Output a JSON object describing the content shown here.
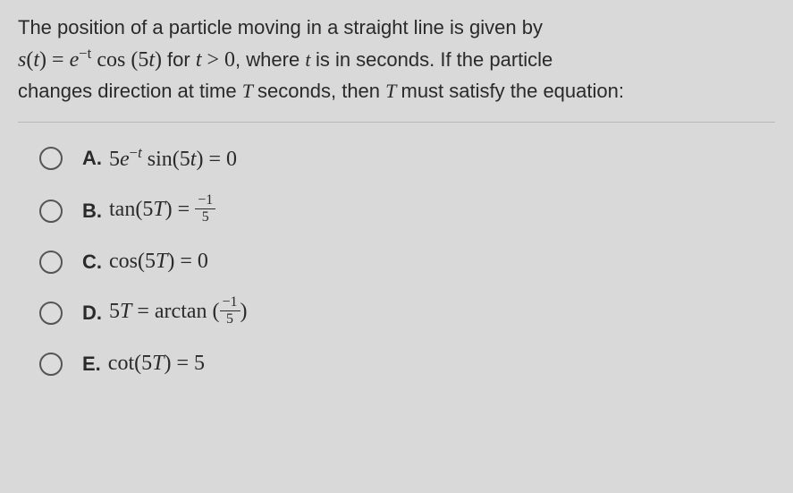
{
  "question": {
    "line1_prefix": "The position of a particle moving in a straight line is given by",
    "expr_s": "s",
    "expr_paren_open": "(",
    "expr_t": "t",
    "expr_paren_close": ")",
    "expr_eq": " = ",
    "expr_e": "e",
    "expr_exp": "−t",
    "expr_cos": " cos ",
    "expr_5t_open": "(5",
    "expr_5t_t": "t",
    "expr_5t_close": ")",
    "for_text": " for ",
    "cond_t": "t",
    "cond_gt": " > 0",
    "line2_mid": ", where ",
    "line2_tvar": "t ",
    "line2_rest": "is in seconds. If the particle",
    "line3_prefix": "changes direction at time ",
    "line3_T": "T ",
    "line3_mid": "seconds, then ",
    "line3_T2": "T ",
    "line3_rest": "must satisfy the equation:"
  },
  "answers": [
    {
      "label": "A.",
      "html": "5<span class=\"math-var\">e</span><sup>−<span class=\"math-var\">t</span></sup> sin(5<span class=\"math-var\">t</span>) = 0"
    },
    {
      "label": "B.",
      "html": "tan(5<span class=\"math-var\">T</span>) = <span class=\"frac\"><span class=\"num\">−1</span><span class=\"den\">5</span></span>"
    },
    {
      "label": "C.",
      "html": "cos(5<span class=\"math-var\">T</span>) = 0"
    },
    {
      "label": "D.",
      "html": "5<span class=\"math-var\">T</span> = arctan (<span class=\"frac\"><span class=\"num\">−1</span><span class=\"den\">5</span></span>)"
    },
    {
      "label": "E.",
      "html": "cot(5<span class=\"math-var\">T</span>) = 5"
    }
  ],
  "colors": {
    "background": "#d9d9d9",
    "text": "#2a2a2a",
    "radio_border": "#555555",
    "divider": "#b8b8b8"
  },
  "typography": {
    "question_fontsize": 22,
    "answer_fontsize": 22,
    "math_fontsize": 24
  }
}
